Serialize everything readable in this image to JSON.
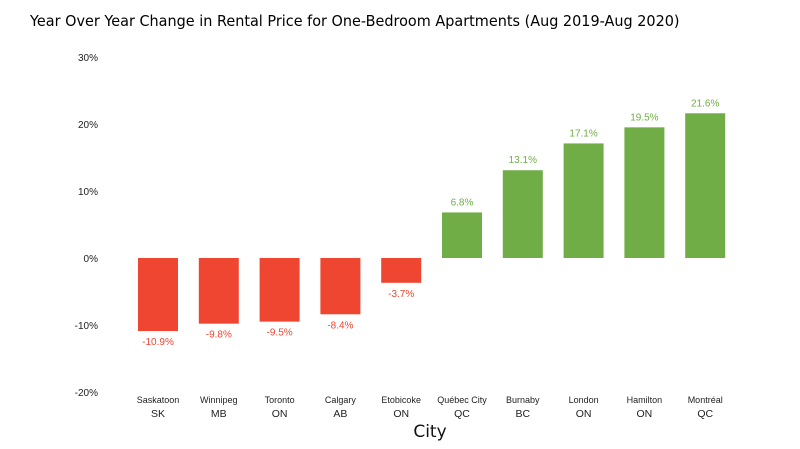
{
  "chart_data": {
    "type": "bar",
    "title": "Year Over Year Change in Rental Price for One-Bedroom Apartments (Aug 2019-Aug 2020)",
    "xlabel": "City",
    "ylabel": "",
    "ylim": [
      -20,
      30
    ],
    "yticks": [
      30,
      20,
      10,
      0,
      -10,
      -20
    ],
    "ytick_labels": [
      "30%",
      "20%",
      "10%",
      "0%",
      "-10%",
      "-20%"
    ],
    "grid": false,
    "categories": [
      "Saskatoon",
      "Winnipeg",
      "Toronto",
      "Calgary",
      "Etobicoke",
      "Québec City",
      "Burnaby",
      "London",
      "Hamilton",
      "Montréal"
    ],
    "provinces": [
      "SK",
      "MB",
      "ON",
      "AB",
      "ON",
      "QC",
      "BC",
      "ON",
      "ON",
      "QC"
    ],
    "values": [
      -10.9,
      -9.8,
      -9.5,
      -8.4,
      -3.7,
      6.8,
      13.1,
      17.1,
      19.5,
      21.6
    ],
    "data_labels": [
      "-10.9%",
      "-9.8%",
      "-9.5%",
      "-8.4%",
      "-3.7%",
      "6.8%",
      "13.1%",
      "17.1%",
      "19.5%",
      "21.6%"
    ],
    "colors": {
      "negative": "#EF4631",
      "positive": "#70AD47"
    }
  }
}
